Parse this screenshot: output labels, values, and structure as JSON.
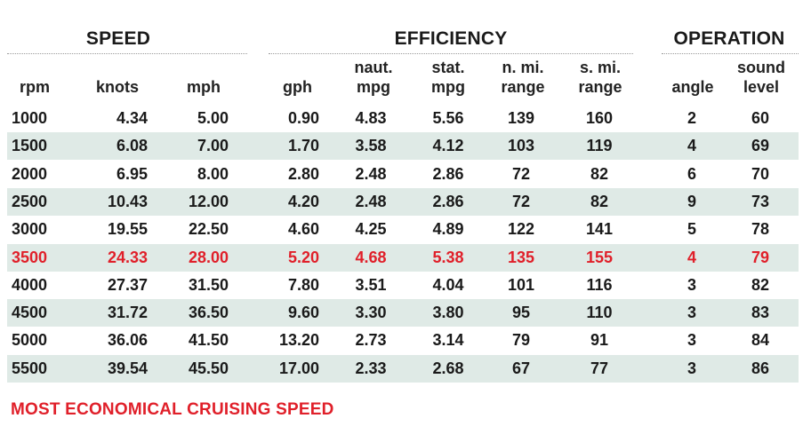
{
  "groups": {
    "speed": "SPEED",
    "efficiency": "EFFICIENCY",
    "operation": "OPERATION"
  },
  "headers": {
    "rpm": [
      "rpm"
    ],
    "knots": [
      "knots"
    ],
    "mph": [
      "mph"
    ],
    "gph": [
      "gph"
    ],
    "naut_mpg": [
      "naut.",
      "mpg"
    ],
    "stat_mpg": [
      "stat.",
      "mpg"
    ],
    "n_mi_range": [
      "n. mi.",
      "range"
    ],
    "s_mi_range": [
      "s. mi.",
      "range"
    ],
    "angle": [
      "angle"
    ],
    "sound_level": [
      "sound",
      "level"
    ]
  },
  "rows": [
    [
      "1000",
      "4.34",
      "5.00",
      "0.90",
      "4.83",
      "5.56",
      "139",
      "160",
      "2",
      "60"
    ],
    [
      "1500",
      "6.08",
      "7.00",
      "1.70",
      "3.58",
      "4.12",
      "103",
      "119",
      "4",
      "69"
    ],
    [
      "2000",
      "6.95",
      "8.00",
      "2.80",
      "2.48",
      "2.86",
      "72",
      "82",
      "6",
      "70"
    ],
    [
      "2500",
      "10.43",
      "12.00",
      "4.20",
      "2.48",
      "2.86",
      "72",
      "82",
      "9",
      "73"
    ],
    [
      "3000",
      "19.55",
      "22.50",
      "4.60",
      "4.25",
      "4.89",
      "122",
      "141",
      "5",
      "78"
    ],
    [
      "3500",
      "24.33",
      "28.00",
      "5.20",
      "4.68",
      "5.38",
      "135",
      "155",
      "4",
      "79"
    ],
    [
      "4000",
      "27.37",
      "31.50",
      "7.80",
      "3.51",
      "4.04",
      "101",
      "116",
      "3",
      "82"
    ],
    [
      "4500",
      "31.72",
      "36.50",
      "9.60",
      "3.30",
      "3.80",
      "95",
      "110",
      "3",
      "83"
    ],
    [
      "5000",
      "36.06",
      "41.50",
      "13.20",
      "2.73",
      "3.14",
      "79",
      "91",
      "3",
      "84"
    ],
    [
      "5500",
      "39.54",
      "45.50",
      "17.00",
      "2.33",
      "2.68",
      "67",
      "77",
      "3",
      "86"
    ]
  ],
  "highlight_row": 5,
  "shaded_rows": [
    1,
    3,
    5,
    7,
    9
  ],
  "colors": {
    "highlight": "#e0202a",
    "shade": "#dfeae6",
    "text": "#1a1a1a"
  },
  "footnote": "MOST ECONOMICAL CRUISING SPEED"
}
